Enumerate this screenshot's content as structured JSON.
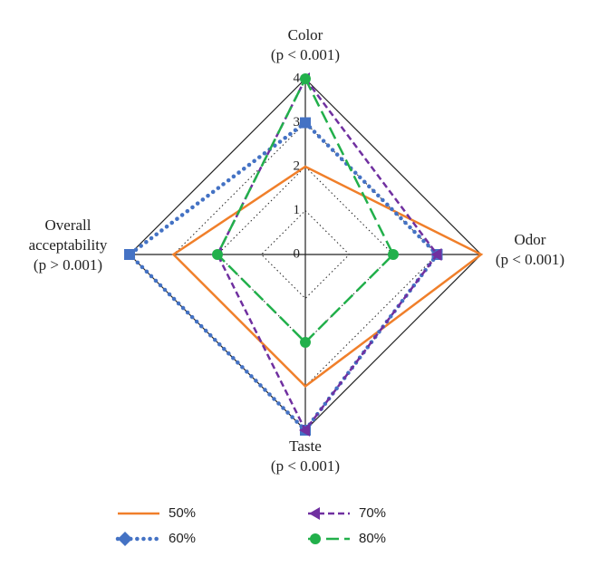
{
  "chart_data": {
    "type": "radar",
    "axes": [
      "Color",
      "Odor",
      "Taste",
      "Overall acceptability"
    ],
    "axis_notes": [
      "(p < 0.001)",
      "(p < 0.001)",
      "(p < 0.001)",
      "(p > 0.001)"
    ],
    "rlim": [
      0,
      4
    ],
    "rticks": [
      0,
      1,
      2,
      3,
      4
    ],
    "series": [
      {
        "name": "50%",
        "color": "#f07f2a",
        "values": [
          2,
          4,
          3,
          3
        ]
      },
      {
        "name": "60%",
        "color": "#4472c4",
        "values": [
          3,
          3,
          4,
          4
        ]
      },
      {
        "name": "70%",
        "color": "#7030a0",
        "values": [
          4,
          3,
          4,
          2
        ]
      },
      {
        "name": "80%",
        "color": "#22b04b",
        "values": [
          4,
          2,
          2,
          2
        ]
      }
    ]
  }
}
